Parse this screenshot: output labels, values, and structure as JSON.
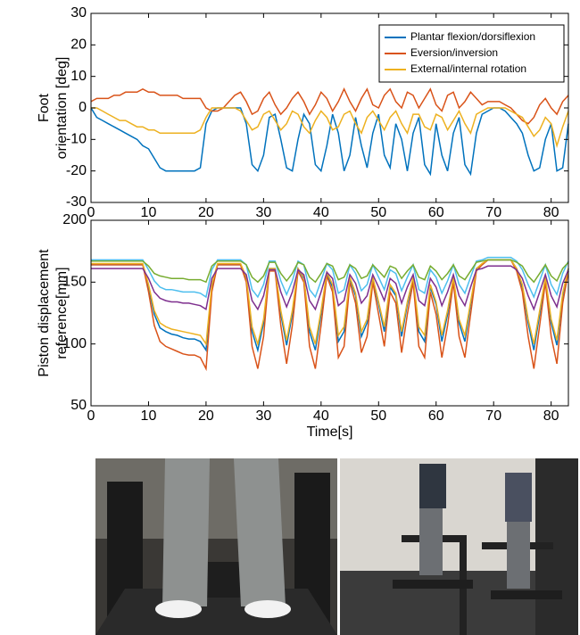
{
  "chart_data": [
    {
      "type": "line",
      "ylabel": [
        "Foot",
        "orientation [deg]"
      ],
      "xlim": [
        0,
        83
      ],
      "xticks": [
        0,
        10,
        20,
        30,
        40,
        50,
        60,
        70,
        80
      ],
      "ylim": [
        -30,
        30
      ],
      "yticks": [
        -30,
        -20,
        -10,
        0,
        10,
        20,
        30
      ],
      "legend": "upper right",
      "x": [
        0,
        1,
        2,
        3,
        4,
        5,
        6,
        7,
        8,
        9,
        10,
        11,
        12,
        13,
        14,
        15,
        16,
        17,
        18,
        19,
        20,
        21,
        22,
        23,
        24,
        25,
        26,
        27,
        28,
        29,
        30,
        31,
        32,
        33,
        34,
        35,
        36,
        37,
        38,
        39,
        40,
        41,
        42,
        43,
        44,
        45,
        46,
        47,
        48,
        49,
        50,
        51,
        52,
        53,
        54,
        55,
        56,
        57,
        58,
        59,
        60,
        61,
        62,
        63,
        64,
        65,
        66,
        67,
        68,
        69,
        70,
        71,
        72,
        73,
        74,
        75,
        76,
        77,
        78,
        79,
        80,
        81,
        82,
        83
      ],
      "series": [
        {
          "name": "Plantar flexion/dorsiflexion",
          "color": "#0072bd",
          "values": [
            0,
            -3,
            -4,
            -5,
            -6,
            -7,
            -8,
            -9,
            -10,
            -12,
            -13,
            -16,
            -19,
            -20,
            -20,
            -20,
            -20,
            -20,
            -20,
            -19,
            -5,
            -1,
            0,
            0,
            0,
            0,
            0,
            -5,
            -18,
            -20,
            -15,
            -3,
            -2,
            -10,
            -19,
            -20,
            -10,
            -2,
            -5,
            -18,
            -20,
            -12,
            -2,
            -8,
            -20,
            -15,
            -3,
            -12,
            -19,
            -8,
            -2,
            -15,
            -19,
            -5,
            -10,
            -20,
            -8,
            -3,
            -18,
            -21,
            -5,
            -15,
            -20,
            -8,
            -3,
            -18,
            -21,
            -8,
            -2,
            -1,
            0,
            0,
            -1,
            -3,
            -5,
            -8,
            -15,
            -20,
            -19,
            -10,
            -5,
            -20,
            -19,
            -5
          ]
        },
        {
          "name": "Eversion/inversion",
          "color": "#d95319",
          "values": [
            2,
            3,
            3,
            3,
            4,
            4,
            5,
            5,
            5,
            6,
            5,
            5,
            4,
            4,
            4,
            4,
            3,
            3,
            3,
            3,
            0,
            -1,
            -1,
            0,
            2,
            4,
            5,
            2,
            -2,
            -1,
            3,
            5,
            1,
            -2,
            0,
            3,
            5,
            2,
            -2,
            1,
            5,
            3,
            -1,
            2,
            6,
            2,
            -1,
            3,
            6,
            1,
            0,
            4,
            6,
            2,
            0,
            5,
            4,
            0,
            3,
            6,
            1,
            -1,
            4,
            5,
            0,
            2,
            5,
            3,
            1,
            2,
            2,
            2,
            1,
            0,
            -2,
            -4,
            -5,
            -3,
            1,
            3,
            0,
            -2,
            2,
            4
          ]
        },
        {
          "name": "External/internal rotation",
          "color": "#edb120",
          "values": [
            0,
            0,
            -1,
            -2,
            -3,
            -4,
            -4,
            -5,
            -6,
            -6,
            -7,
            -7,
            -8,
            -8,
            -8,
            -8,
            -8,
            -8,
            -8,
            -7,
            -3,
            0,
            0,
            0,
            0,
            0,
            -1,
            -4,
            -7,
            -6,
            -2,
            -1,
            -4,
            -7,
            -5,
            -1,
            -2,
            -6,
            -8,
            -4,
            -1,
            -3,
            -7,
            -6,
            -2,
            -1,
            -5,
            -8,
            -3,
            -1,
            -4,
            -7,
            -3,
            -1,
            -5,
            -8,
            -2,
            -2,
            -6,
            -7,
            -2,
            -3,
            -7,
            -4,
            -1,
            -5,
            -8,
            -2,
            -1,
            0,
            0,
            0,
            0,
            -1,
            -2,
            -3,
            -6,
            -9,
            -7,
            -3,
            -5,
            -12,
            -6,
            -1
          ]
        }
      ]
    },
    {
      "type": "line",
      "ylabel": [
        "Piston displacement",
        "reference[mm]"
      ],
      "xlabel": "Time[s]",
      "xlim": [
        0,
        83
      ],
      "xticks": [
        0,
        10,
        20,
        30,
        40,
        50,
        60,
        70,
        80
      ],
      "ylim": [
        50,
        200
      ],
      "yticks": [
        50,
        100,
        150,
        200
      ],
      "x": [
        0,
        1,
        2,
        3,
        4,
        5,
        6,
        7,
        8,
        9,
        10,
        11,
        12,
        13,
        14,
        15,
        16,
        17,
        18,
        19,
        20,
        21,
        22,
        23,
        24,
        25,
        26,
        27,
        28,
        29,
        30,
        31,
        32,
        33,
        34,
        35,
        36,
        37,
        38,
        39,
        40,
        41,
        42,
        43,
        44,
        45,
        46,
        47,
        48,
        49,
        50,
        51,
        52,
        53,
        54,
        55,
        56,
        57,
        58,
        59,
        60,
        61,
        62,
        63,
        64,
        65,
        66,
        67,
        68,
        69,
        70,
        71,
        72,
        73,
        74,
        75,
        76,
        77,
        78,
        79,
        80,
        81,
        82,
        83
      ],
      "series": [
        {
          "color": "#0072bd",
          "values": [
            164,
            164,
            164,
            164,
            164,
            164,
            164,
            164,
            164,
            164,
            146,
            124,
            113,
            110,
            108,
            107,
            105,
            104,
            104,
            102,
            95,
            146,
            164,
            164,
            164,
            164,
            164,
            153,
            110,
            95,
            117,
            161,
            161,
            124,
            99,
            124,
            161,
            153,
            110,
            95,
            124,
            157,
            146,
            102,
            110,
            153,
            139,
            106,
            117,
            153,
            132,
            110,
            146,
            139,
            106,
            132,
            153,
            110,
            102,
            146,
            132,
            102,
            124,
            153,
            117,
            102,
            132,
            161,
            164,
            168,
            168,
            168,
            168,
            168,
            161,
            146,
            117,
            95,
            124,
            153,
            117,
            99,
            139,
            161
          ]
        },
        {
          "color": "#d95319",
          "values": [
            164,
            164,
            164,
            164,
            164,
            164,
            164,
            164,
            164,
            164,
            142,
            115,
            102,
            98,
            96,
            94,
            92,
            91,
            91,
            89,
            80,
            142,
            164,
            164,
            164,
            164,
            164,
            150,
            98,
            80,
            106,
            159,
            159,
            115,
            84,
            115,
            159,
            150,
            98,
            80,
            115,
            155,
            142,
            89,
            98,
            150,
            133,
            93,
            106,
            150,
            124,
            98,
            142,
            133,
            93,
            124,
            150,
            98,
            89,
            142,
            124,
            89,
            115,
            150,
            106,
            89,
            124,
            159,
            164,
            168,
            168,
            168,
            168,
            168,
            159,
            142,
            106,
            80,
            115,
            150,
            106,
            84,
            133,
            159
          ]
        },
        {
          "color": "#edb120",
          "values": [
            165,
            165,
            165,
            165,
            165,
            165,
            165,
            165,
            165,
            165,
            148,
            127,
            117,
            114,
            112,
            111,
            110,
            109,
            108,
            107,
            100,
            148,
            165,
            165,
            165,
            165,
            165,
            154,
            114,
            100,
            120,
            161,
            161,
            127,
            103,
            127,
            161,
            154,
            114,
            100,
            127,
            158,
            148,
            107,
            114,
            154,
            141,
            110,
            120,
            154,
            134,
            114,
            148,
            141,
            110,
            134,
            154,
            114,
            107,
            148,
            134,
            107,
            127,
            154,
            120,
            107,
            134,
            161,
            165,
            168,
            168,
            168,
            168,
            168,
            161,
            148,
            120,
            100,
            127,
            154,
            120,
            103,
            141,
            161
          ]
        },
        {
          "color": "#7e2f8e",
          "values": [
            161,
            161,
            161,
            161,
            161,
            161,
            161,
            161,
            161,
            161,
            153,
            142,
            137,
            135,
            134,
            134,
            133,
            133,
            132,
            131,
            128,
            153,
            161,
            161,
            161,
            161,
            161,
            156,
            135,
            128,
            139,
            160,
            160,
            142,
            130,
            142,
            160,
            156,
            135,
            128,
            142,
            158,
            153,
            131,
            135,
            156,
            149,
            133,
            139,
            156,
            146,
            135,
            153,
            149,
            133,
            146,
            156,
            135,
            131,
            153,
            146,
            131,
            142,
            156,
            139,
            131,
            146,
            160,
            161,
            163,
            163,
            163,
            163,
            163,
            160,
            153,
            139,
            128,
            142,
            156,
            139,
            130,
            149,
            160
          ]
        },
        {
          "color": "#4dbeee",
          "values": [
            168,
            168,
            168,
            168,
            168,
            168,
            168,
            168,
            168,
            168,
            160,
            151,
            146,
            144,
            144,
            143,
            142,
            142,
            142,
            141,
            138,
            160,
            168,
            168,
            168,
            168,
            168,
            164,
            144,
            138,
            148,
            167,
            167,
            151,
            140,
            151,
            167,
            164,
            144,
            138,
            151,
            165,
            160,
            141,
            144,
            164,
            157,
            143,
            148,
            164,
            154,
            144,
            160,
            157,
            143,
            154,
            164,
            144,
            141,
            160,
            154,
            141,
            151,
            164,
            148,
            141,
            154,
            167,
            168,
            170,
            170,
            170,
            170,
            170,
            167,
            160,
            148,
            138,
            151,
            164,
            148,
            140,
            157,
            167
          ]
        },
        {
          "color": "#77ac30",
          "values": [
            167,
            167,
            167,
            167,
            167,
            167,
            167,
            167,
            167,
            167,
            163,
            157,
            155,
            154,
            153,
            153,
            153,
            152,
            152,
            152,
            150,
            163,
            167,
            167,
            167,
            167,
            167,
            164,
            154,
            150,
            155,
            166,
            166,
            157,
            151,
            157,
            166,
            164,
            154,
            150,
            157,
            165,
            163,
            152,
            154,
            164,
            161,
            153,
            155,
            164,
            159,
            154,
            163,
            161,
            153,
            159,
            164,
            154,
            152,
            163,
            159,
            152,
            157,
            164,
            155,
            152,
            159,
            166,
            167,
            168,
            168,
            168,
            168,
            168,
            166,
            163,
            155,
            150,
            157,
            164,
            155,
            151,
            161,
            166
          ]
        }
      ]
    }
  ]
}
